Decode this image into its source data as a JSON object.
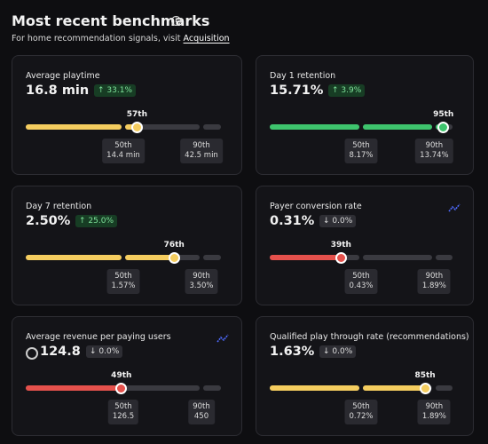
{
  "header": {
    "title": "Most recent benchmarks",
    "subtitle": "For home recommendation signals, visit",
    "link": "Acquisition"
  },
  "cards": [
    {
      "title": "Average playtime",
      "value": "16.8 min",
      "change": "↑ 33.1%",
      "color": "#f5cd5f",
      "percentile": {
        "value": 57,
        "label": "57th"
      },
      "benchmarks": [
        {
          "percentile": {
            "value": 50,
            "label": "50th"
          },
          "value": "14.4 min"
        },
        {
          "percentile": {
            "value": 90,
            "label": "90th"
          },
          "value": "42.5 min"
        }
      ]
    },
    {
      "title": "Day 1 retention",
      "value": "15.71%",
      "change": "↑ 3.9%",
      "color": "#3ec46d",
      "percentile": {
        "value": 95,
        "label": "95th"
      },
      "benchmarks": [
        {
          "percentile": {
            "value": 50,
            "label": "50th"
          },
          "value": "8.17%"
        },
        {
          "percentile": {
            "value": 90,
            "label": "90th"
          },
          "value": "13.74%"
        }
      ]
    },
    {
      "title": "Day 7 retention",
      "value": "2.50%",
      "change": "↑ 25.0%",
      "color": "#f5cd5f",
      "percentile": {
        "value": 76,
        "label": "76th"
      },
      "benchmarks": [
        {
          "percentile": {
            "value": 50,
            "label": "50th"
          },
          "value": "1.57%"
        },
        {
          "percentile": {
            "value": 90,
            "label": "90th"
          },
          "value": "3.50%"
        }
      ]
    },
    {
      "title": "Payer conversion rate",
      "value": "0.31%",
      "change": "↓ 0.0%",
      "color": "#e5514c",
      "percentile": {
        "value": 39,
        "label": "39th"
      },
      "trend_icon": true,
      "benchmarks": [
        {
          "percentile": {
            "value": 50,
            "label": "50th"
          },
          "value": "0.43%"
        },
        {
          "percentile": {
            "value": 90,
            "label": "90th"
          },
          "value": "1.89%"
        }
      ]
    },
    {
      "title": "Average revenue per paying users",
      "value": "124.8",
      "change": "↓ 0.0%",
      "color": "#e5514c",
      "percentile": {
        "value": 49,
        "label": "49th"
      },
      "trend_icon": true,
      "currency_icon": true,
      "benchmarks": [
        {
          "percentile": {
            "value": 50,
            "label": "50th"
          },
          "value": "126.5"
        },
        {
          "percentile": {
            "value": 90,
            "label": "90th"
          },
          "value": "450"
        }
      ]
    },
    {
      "title": "Qualified play through rate (recommendations)",
      "value": "1.63%",
      "change": "↓ 0.0%",
      "color": "#f5cd5f",
      "percentile": {
        "value": 85,
        "label": "85th"
      },
      "benchmarks": [
        {
          "percentile": {
            "value": 50,
            "label": "50th"
          },
          "value": "0.72%"
        },
        {
          "percentile": {
            "value": 90,
            "label": "90th"
          },
          "value": "1.89%"
        }
      ]
    }
  ]
}
